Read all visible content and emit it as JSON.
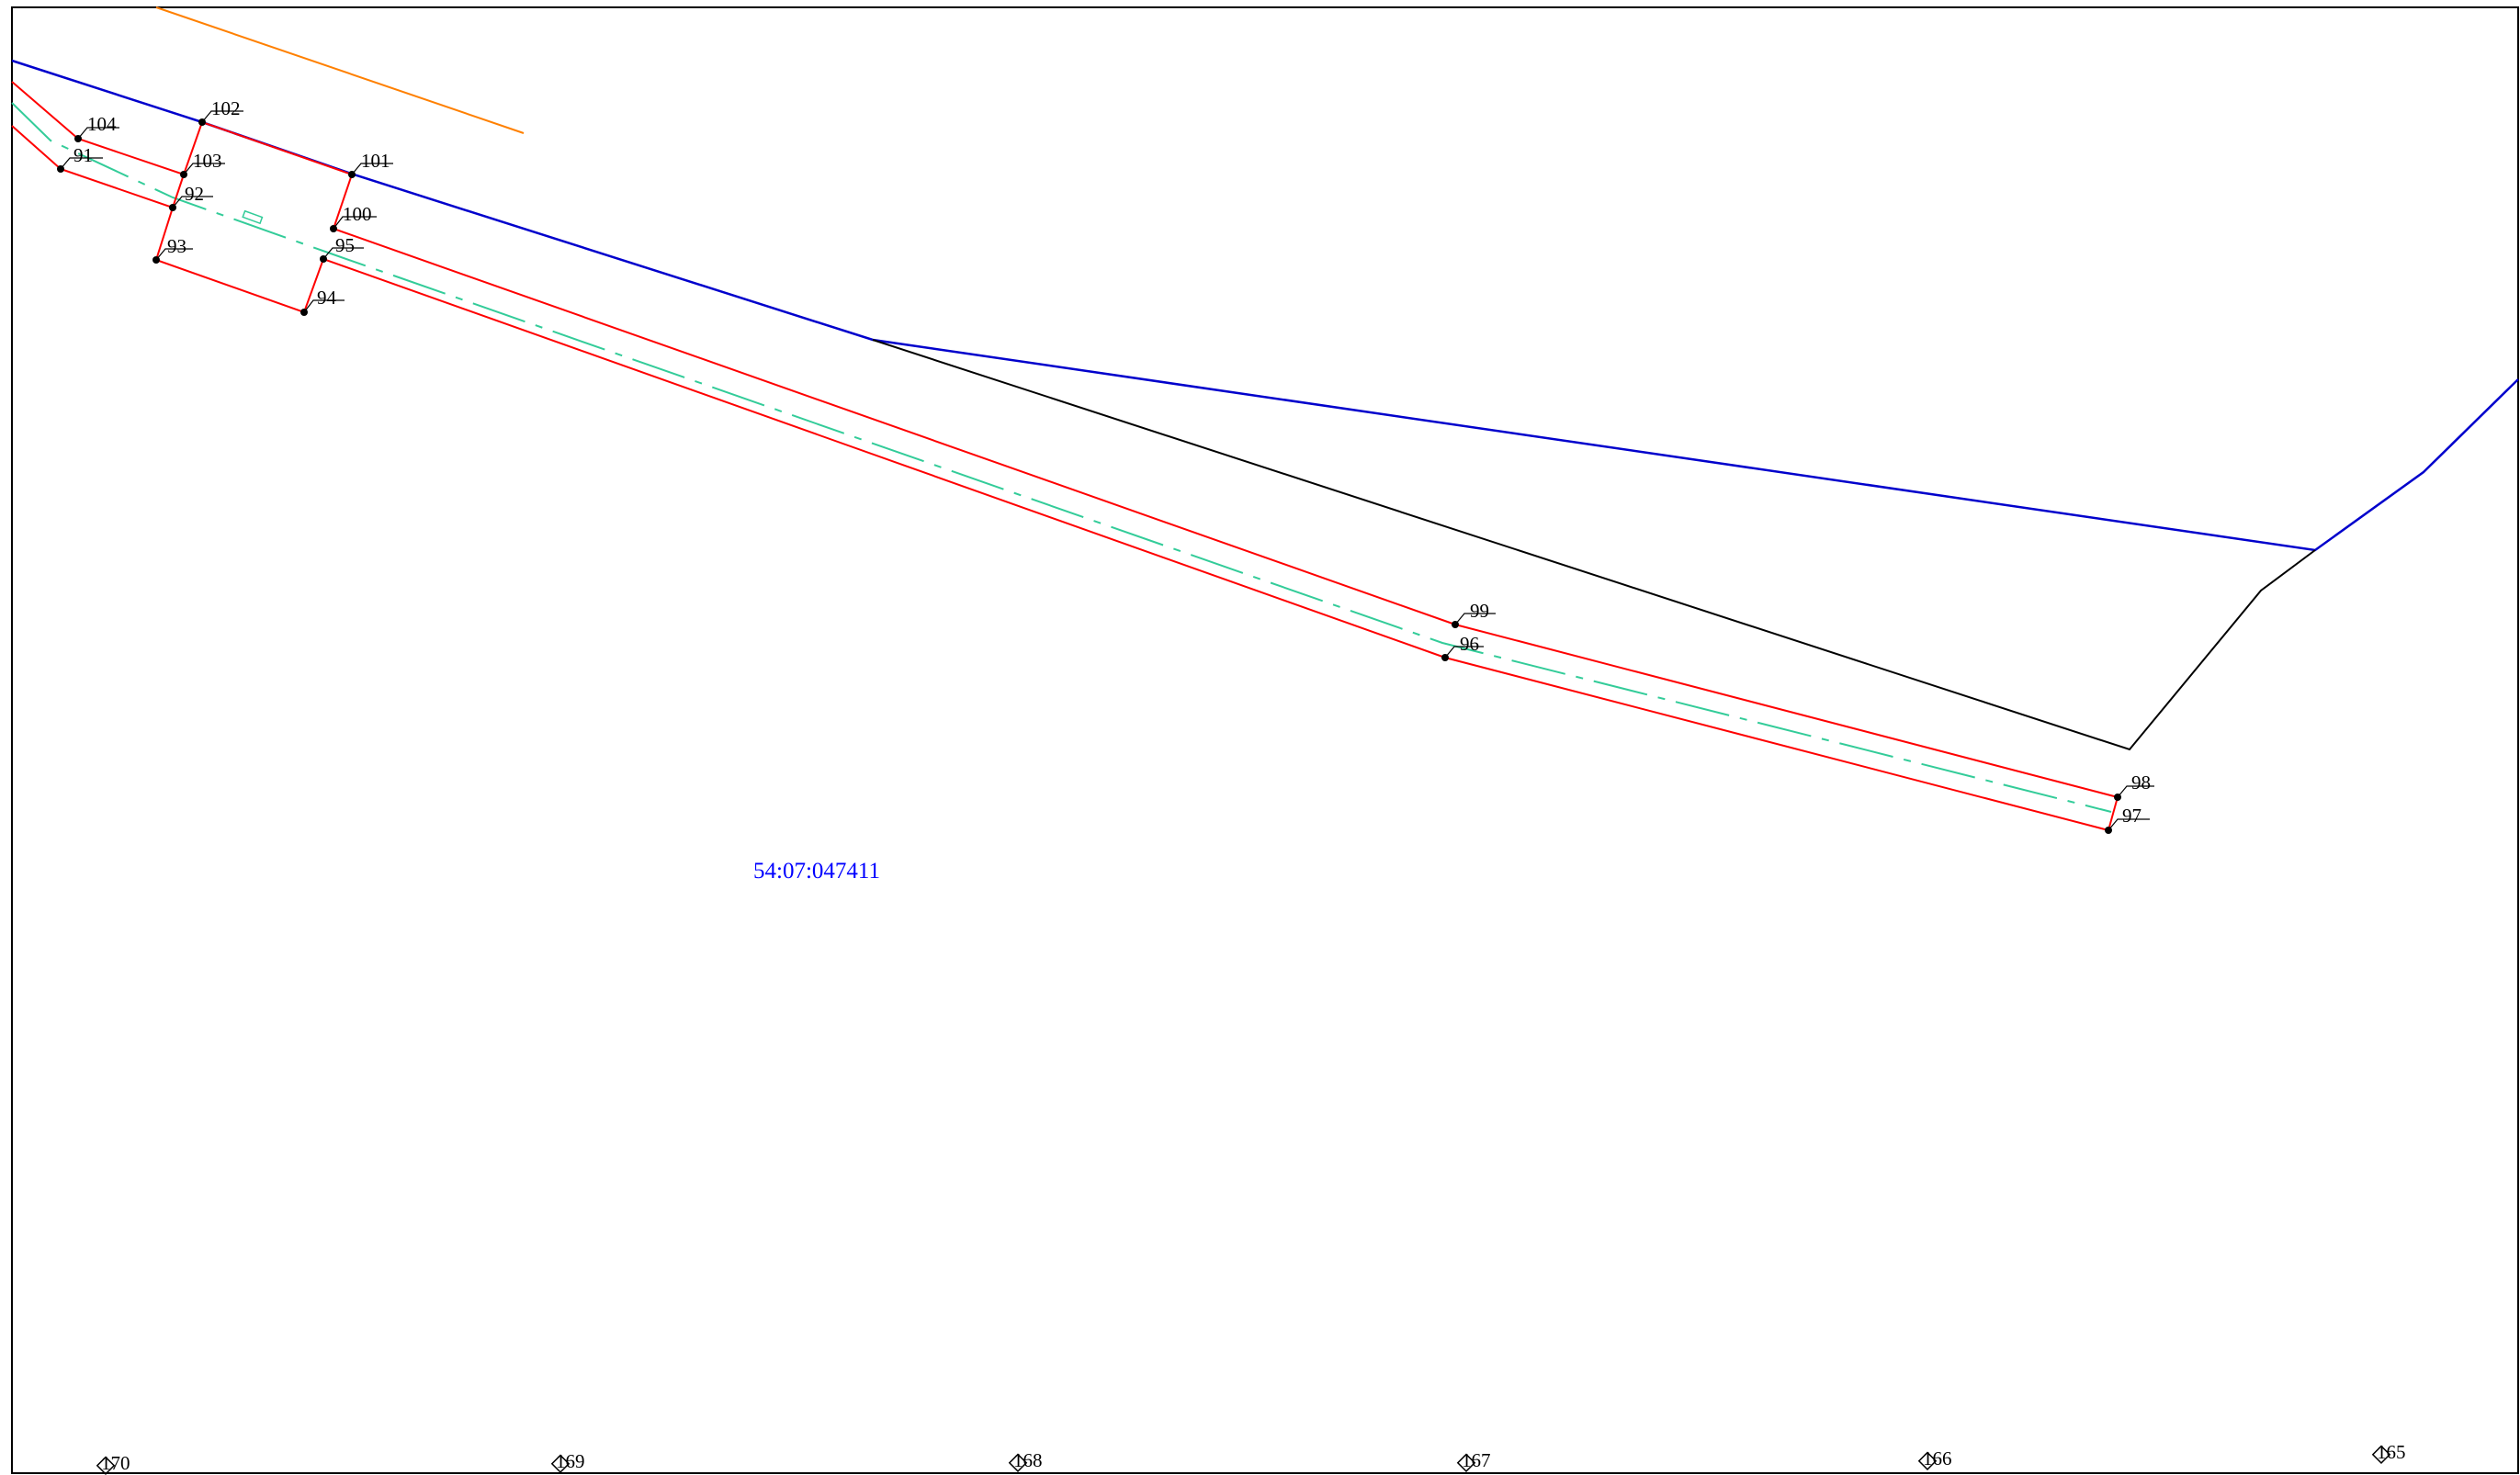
{
  "cadastral_block": "54:07:047411",
  "colors": {
    "parcel_boundary": "#ff0000",
    "block_boundary": "#0000cc",
    "axis_line": "#33cc99",
    "other_line": "#000000",
    "road_line": "#ff8000",
    "frame": "#000000",
    "block_label": "#0000ff"
  },
  "points": {
    "91": "91",
    "92": "92",
    "93": "93",
    "94": "94",
    "95": "95",
    "96": "96",
    "97": "97",
    "98": "98",
    "99": "99",
    "100": "100",
    "101": "101",
    "102": "102",
    "103": "103",
    "104": "104"
  },
  "markers": {
    "m165": "165",
    "m166": "166",
    "m167": "167",
    "m168": "168",
    "m169": "169",
    "m170": "170"
  }
}
